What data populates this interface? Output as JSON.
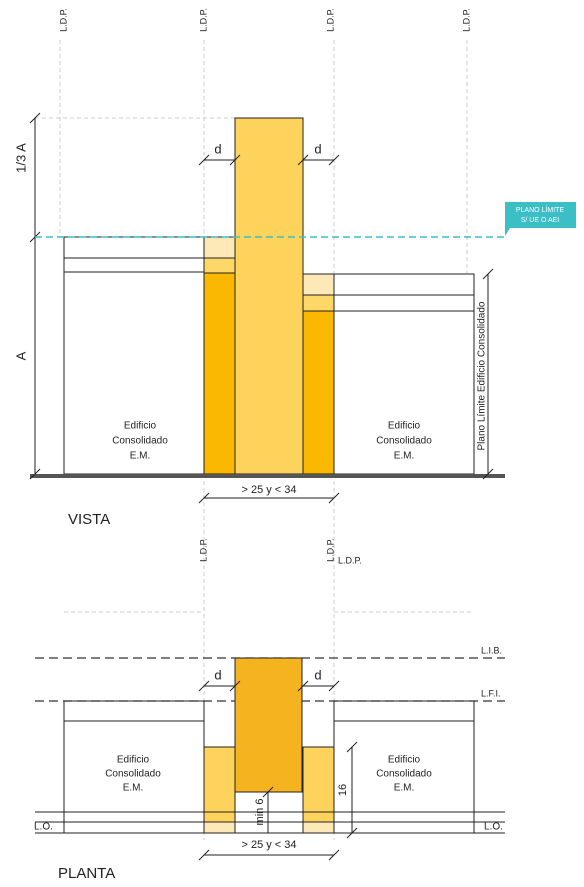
{
  "vista": {
    "ldp": [
      "L.D.P.",
      "L.D.P.",
      "L.D.P.",
      "L.D.P."
    ],
    "third": "1/3 A",
    "a": "A",
    "d_left": "d",
    "d_right": "d",
    "plane": [
      "PLANO LÍMITE",
      "S/ UE O AEI"
    ],
    "left_building": [
      "Edificio",
      "Consolidado",
      "E.M."
    ],
    "right_building": [
      "Edificio",
      "Consolidado",
      "E.M."
    ],
    "plane_consolidated": "Plano Límite Edificio Consolidado",
    "width": "> 25 y < 34",
    "title": "VISTA"
  },
  "planta": {
    "ldp": [
      "L.D.P.",
      "L.D.P.",
      "L.D.P."
    ],
    "lib": "L.I.B.",
    "lfi": "L.F.I.",
    "d_left": "d",
    "d_right": "d",
    "left_building": [
      "Edificio",
      "Consolidado",
      "E.M."
    ],
    "right_building": [
      "Edificio",
      "Consolidado",
      "E.M."
    ],
    "depth": "16",
    "min": "min 6",
    "lo_left": "L.O.",
    "lo_right": "L.O.",
    "width": "> 25 y < 34",
    "title": "PLANTA"
  }
}
